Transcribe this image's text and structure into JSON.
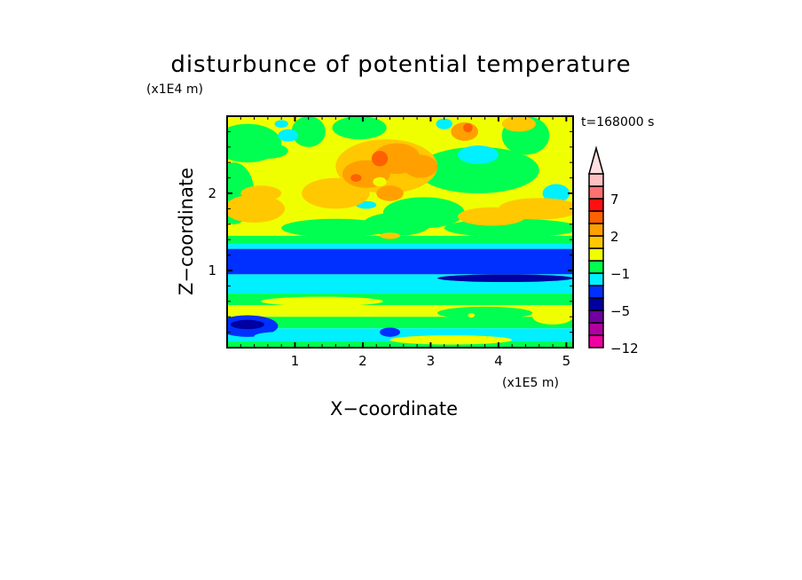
{
  "chart_data": {
    "type": "heatmap",
    "title": "disturbunce of potential temperature",
    "xlabel": "X−coordinate",
    "ylabel": "Z−coordinate",
    "x_unit": "(x1E5 m)",
    "y_unit": "(x1E4 m)",
    "annotation": "t=168000 s",
    "xlim": [
      0,
      5.1
    ],
    "ylim": [
      0,
      3.0
    ],
    "x_ticks": [
      "1",
      "2",
      "3",
      "4",
      "5"
    ],
    "y_ticks": [
      "1",
      "2"
    ],
    "colorbar": {
      "tick_labels": [
        "−12",
        "−5",
        "−1",
        "2",
        "7"
      ],
      "tick_positions_index": [
        0,
        3,
        6,
        9,
        12
      ],
      "colors_bottom_to_top": [
        "#f000a0",
        "#b000a0",
        "#7000a0",
        "#0000a0",
        "#0030ff",
        "#00f0ff",
        "#00ff50",
        "#f0ff00",
        "#ffc800",
        "#ffa000",
        "#ff6000",
        "#ff1010",
        "#ff7070",
        "#ffc0c0"
      ],
      "extend_top_color": "#ffe0e0"
    }
  }
}
